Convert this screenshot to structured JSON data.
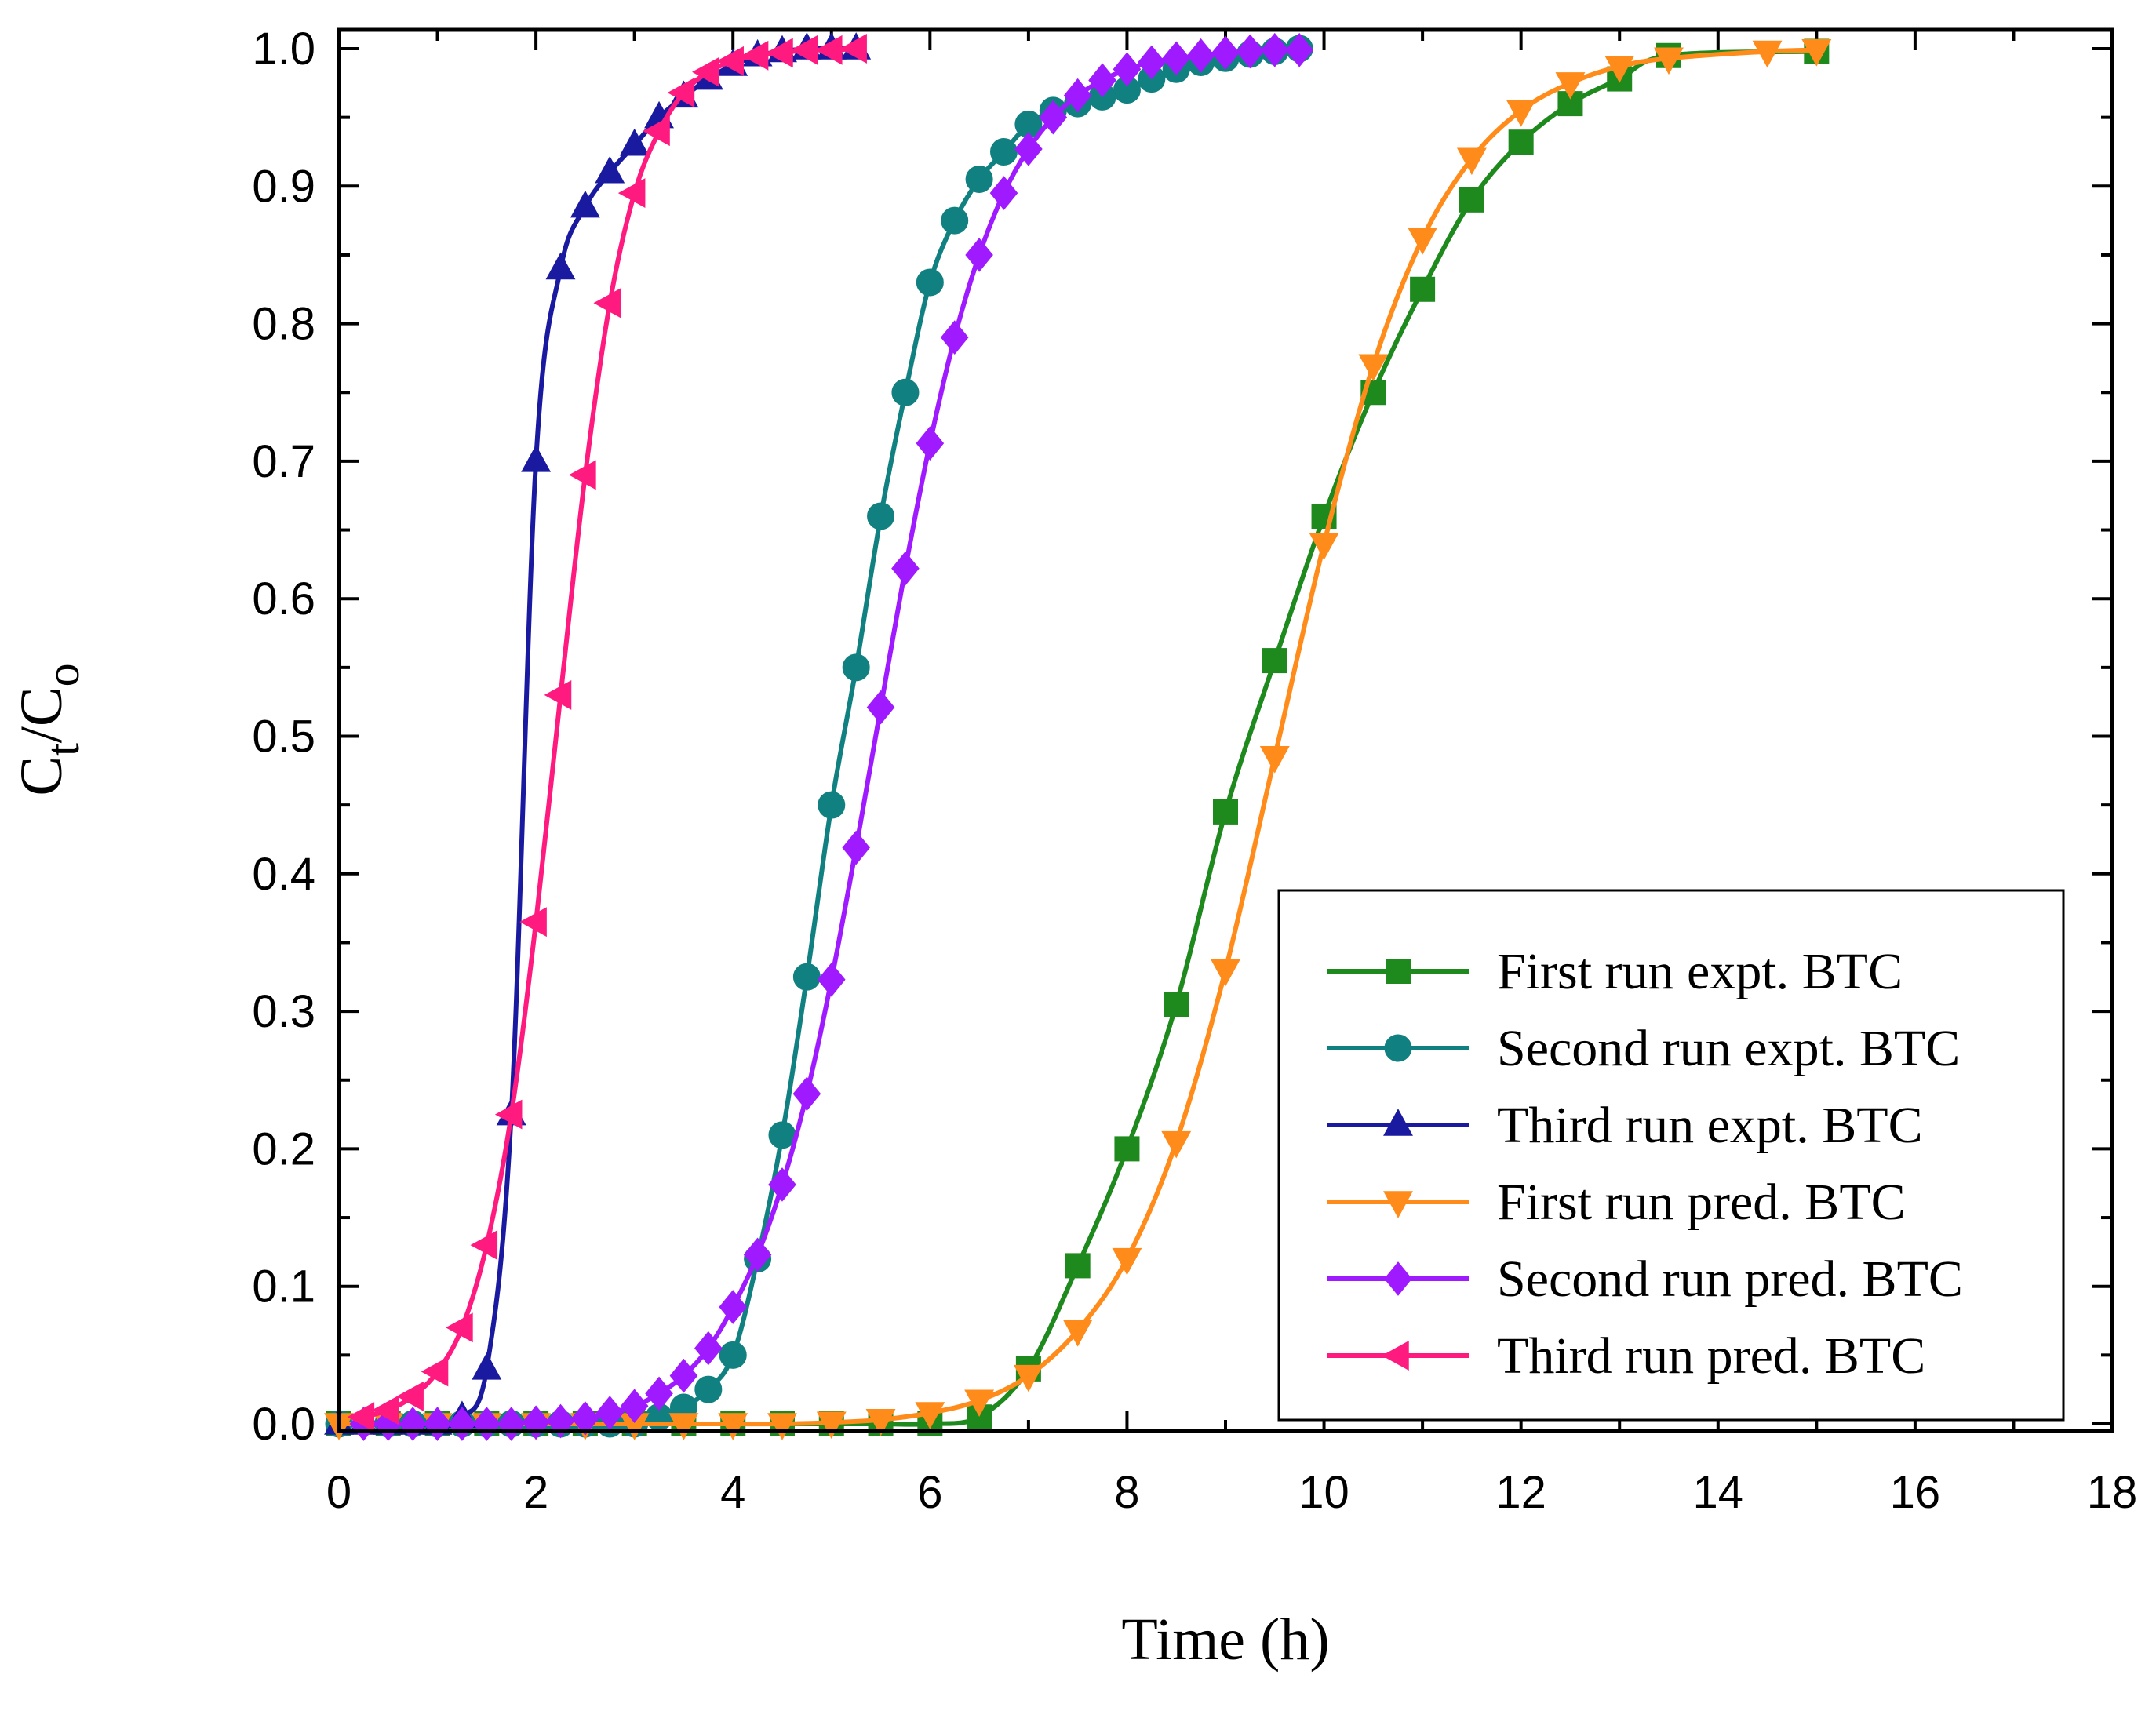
{
  "chart_data": {
    "type": "line",
    "xlabel": "Time (h)",
    "ylabel": {
      "main": "C",
      "sub1": "t",
      "slash": "/C",
      "sub2": "o"
    },
    "xlim": [
      0,
      18
    ],
    "ylim": [
      0,
      1.0
    ],
    "xticks": [
      "0",
      "2",
      "4",
      "6",
      "8",
      "10",
      "12",
      "14",
      "16",
      "18"
    ],
    "yticks": [
      "0.0",
      "0.1",
      "0.2",
      "0.3",
      "0.4",
      "0.5",
      "0.6",
      "0.7",
      "0.8",
      "0.9",
      "1.0"
    ],
    "grid": false,
    "legend_position": "bottom-right",
    "series": [
      {
        "name": "First run expt. BTC",
        "color": "#1e8a1e",
        "marker": "square",
        "x": [
          0,
          0.5,
          1,
          1.5,
          2,
          2.5,
          3,
          3.5,
          4,
          4.5,
          5,
          5.5,
          6,
          6.5,
          7,
          7.5,
          8,
          8.5,
          9,
          9.5,
          10,
          10.5,
          11,
          11.5,
          12,
          12.5,
          13,
          13.5,
          15
        ],
        "y": [
          0,
          0,
          0,
          0,
          0,
          0,
          0,
          0,
          0,
          0,
          0,
          0,
          0,
          0.005,
          0.04,
          0.115,
          0.2,
          0.305,
          0.445,
          0.555,
          0.66,
          0.75,
          0.825,
          0.89,
          0.932,
          0.96,
          0.978,
          0.995,
          0.998
        ]
      },
      {
        "name": "Second run expt. BTC",
        "color": "#118080",
        "marker": "circle",
        "x": [
          0,
          0.5,
          0.75,
          1,
          1.25,
          1.5,
          1.75,
          2,
          2.25,
          2.5,
          2.75,
          3,
          3.25,
          3.5,
          3.75,
          4,
          4.25,
          4.5,
          4.75,
          5,
          5.25,
          5.5,
          5.75,
          6,
          6.25,
          6.5,
          6.75,
          7,
          7.25,
          7.5,
          7.75,
          8,
          8.25,
          8.5,
          8.75,
          9,
          9.25,
          9.5,
          9.75
        ],
        "y": [
          0,
          0,
          0,
          0,
          0,
          0,
          0,
          0,
          0,
          0,
          0,
          0,
          0.005,
          0.012,
          0.025,
          0.05,
          0.12,
          0.21,
          0.325,
          0.45,
          0.55,
          0.66,
          0.75,
          0.83,
          0.875,
          0.905,
          0.925,
          0.945,
          0.955,
          0.96,
          0.965,
          0.97,
          0.978,
          0.985,
          0.99,
          0.993,
          0.996,
          0.998,
          1.0
        ]
      },
      {
        "name": "Third run expt. BTC",
        "color": "#1a1aa0",
        "marker": "triangle-up",
        "x": [
          0,
          0.25,
          0.5,
          0.75,
          1,
          1.25,
          1.5,
          1.75,
          2,
          2.25,
          2.5,
          2.75,
          3,
          3.25,
          3.5,
          3.75,
          4,
          4.25,
          4.5,
          4.75,
          5,
          5.25
        ],
        "y": [
          0,
          0,
          0,
          0,
          0,
          0.005,
          0.04,
          0.225,
          0.7,
          0.84,
          0.885,
          0.91,
          0.93,
          0.95,
          0.965,
          0.978,
          0.988,
          0.995,
          0.998,
          1.0,
          1.0,
          1.0
        ]
      },
      {
        "name": "First run pred. BTC",
        "color": "#ff8c1a",
        "marker": "triangle-down",
        "x": [
          0,
          0.5,
          1,
          1.5,
          2,
          2.5,
          3,
          3.5,
          4,
          4.5,
          5,
          5.5,
          6,
          6.5,
          7,
          7.5,
          8,
          8.5,
          9,
          9.5,
          10,
          10.5,
          11,
          11.5,
          12,
          12.5,
          13,
          13.5,
          14.5,
          15
        ],
        "y": [
          0,
          0,
          0,
          0,
          0,
          0,
          0,
          0,
          0,
          0,
          0.001,
          0.003,
          0.008,
          0.017,
          0.035,
          0.068,
          0.12,
          0.205,
          0.33,
          0.485,
          0.64,
          0.77,
          0.862,
          0.92,
          0.955,
          0.975,
          0.987,
          0.993,
          0.998,
          0.999
        ]
      },
      {
        "name": "Second run pred. BTC",
        "color": "#a01aff",
        "marker": "diamond",
        "x": [
          0.25,
          0.5,
          0.75,
          1,
          1.25,
          1.5,
          1.75,
          2,
          2.25,
          2.5,
          2.75,
          3,
          3.25,
          3.5,
          3.75,
          4,
          4.25,
          4.5,
          4.75,
          5,
          5.25,
          5.5,
          5.75,
          6,
          6.25,
          6.5,
          6.75,
          7,
          7.25,
          7.5,
          7.75,
          8,
          8.25,
          8.5,
          8.75,
          9,
          9.25,
          9.5,
          9.75
        ],
        "y": [
          0,
          0,
          0,
          0,
          0,
          0,
          0,
          0.001,
          0.002,
          0.004,
          0.008,
          0.013,
          0.022,
          0.035,
          0.055,
          0.085,
          0.123,
          0.174,
          0.24,
          0.323,
          0.419,
          0.521,
          0.622,
          0.713,
          0.79,
          0.85,
          0.895,
          0.927,
          0.95,
          0.966,
          0.977,
          0.985,
          0.99,
          0.993,
          0.995,
          0.997,
          0.998,
          0.999,
          0.999
        ]
      },
      {
        "name": "Third run pred. BTC",
        "color": "#ff1a80",
        "marker": "triangle-left",
        "x": [
          0.25,
          0.5,
          0.75,
          1,
          1.25,
          1.5,
          1.75,
          2,
          2.25,
          2.5,
          2.75,
          3,
          3.25,
          3.5,
          3.75,
          4,
          4.25,
          4.5,
          4.75,
          5,
          5.25
        ],
        "y": [
          0.005,
          0.01,
          0.02,
          0.038,
          0.07,
          0.13,
          0.225,
          0.365,
          0.53,
          0.69,
          0.815,
          0.895,
          0.94,
          0.968,
          0.983,
          0.991,
          0.995,
          0.997,
          0.999,
          0.999,
          1.0
        ]
      }
    ]
  }
}
